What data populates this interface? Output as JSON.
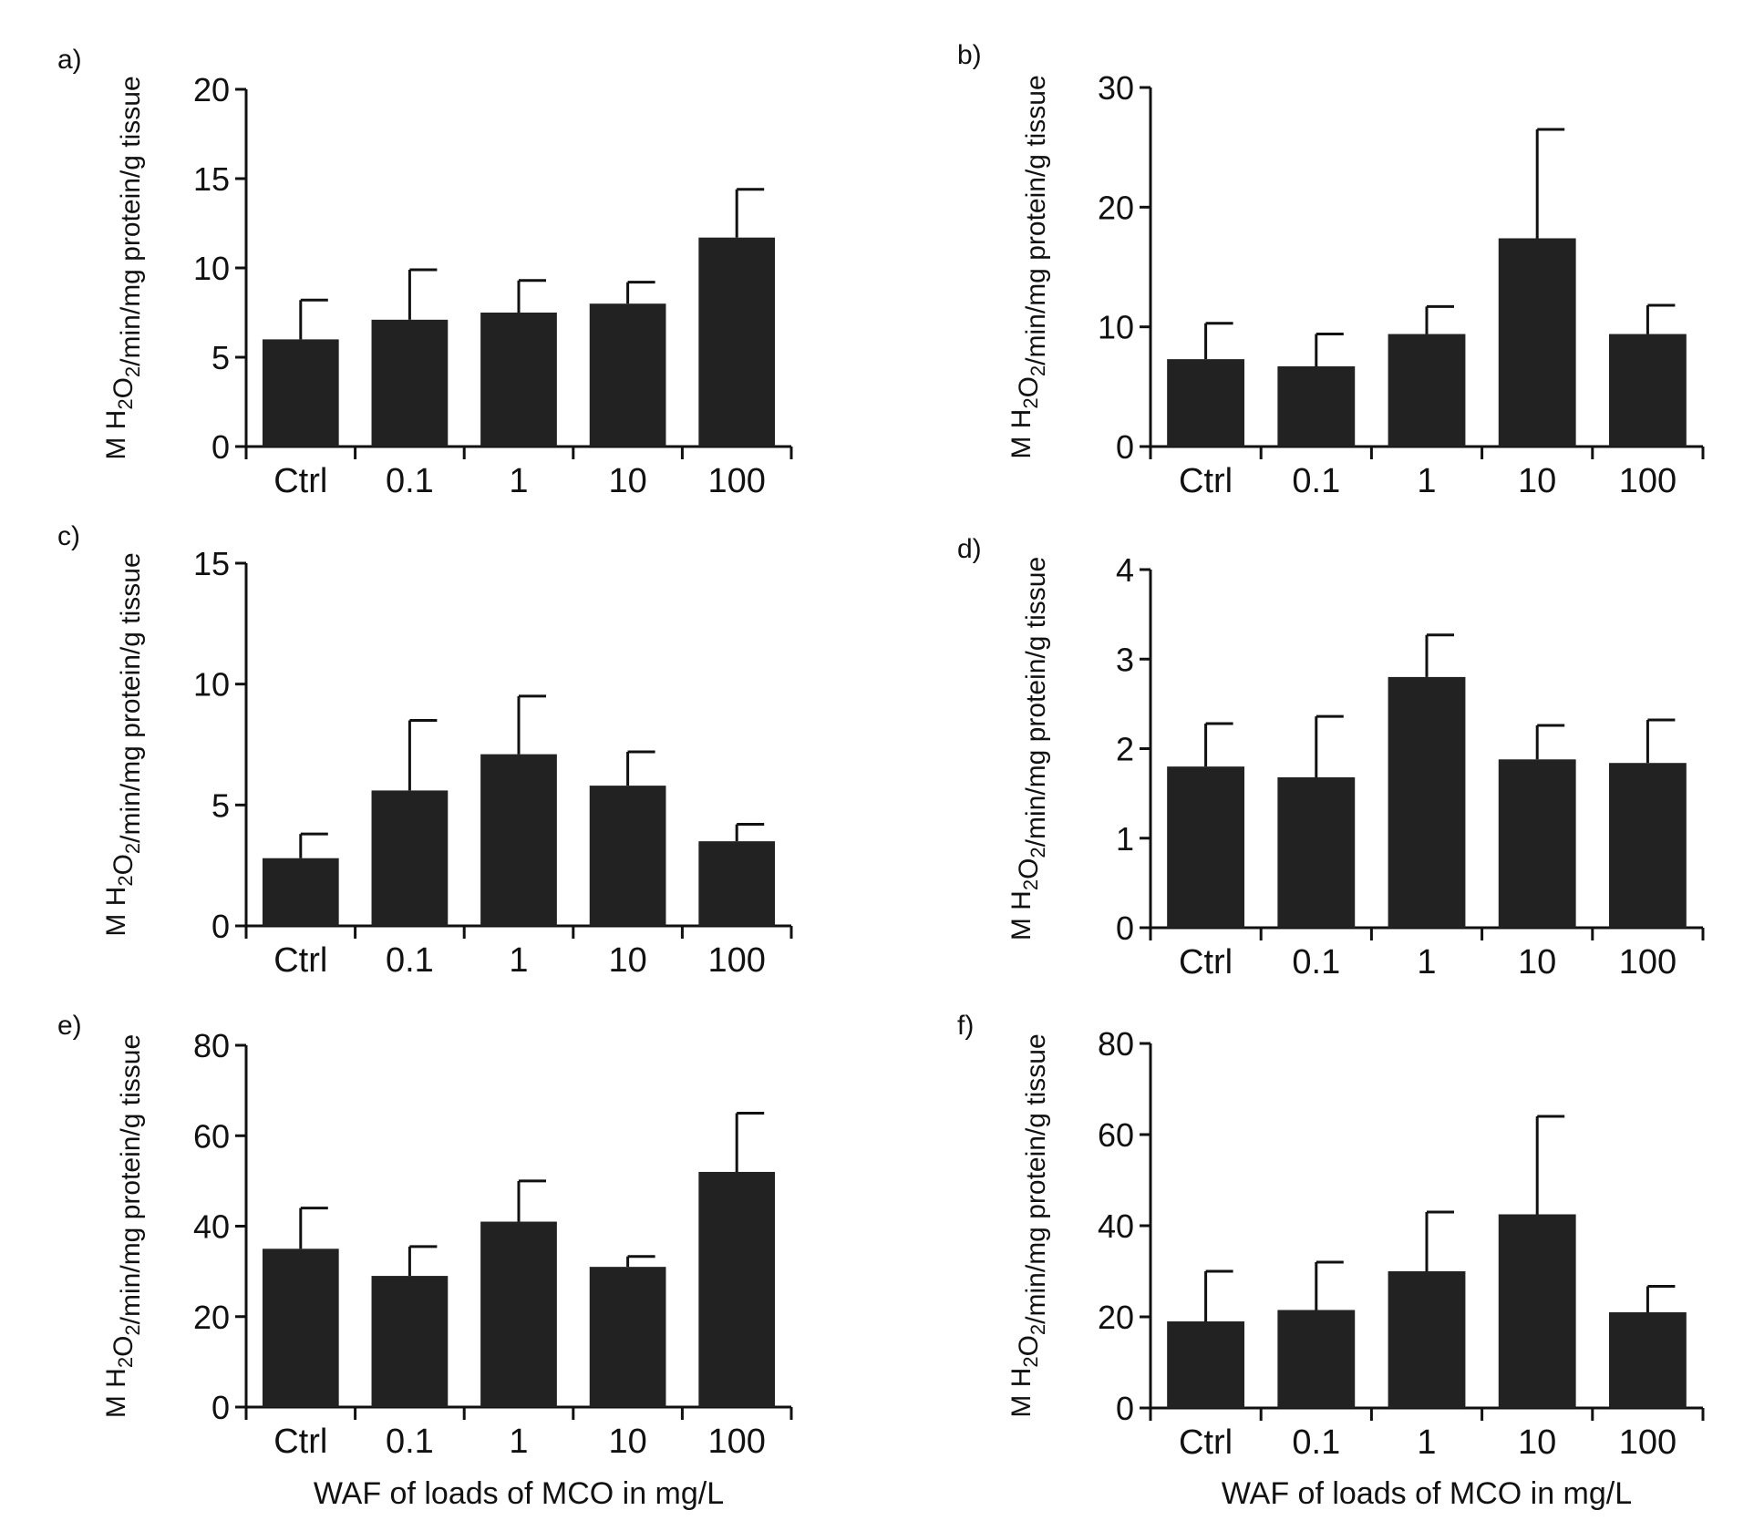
{
  "figure": {
    "x_axis_title": "WAF of loads of MCO in mg/L"
  },
  "chart_data": [
    {
      "panel": "a)",
      "type": "bar",
      "categories": [
        "Ctrl",
        "0.1",
        "1",
        "10",
        "100"
      ],
      "values": [
        6.0,
        7.1,
        7.5,
        8.0,
        11.7
      ],
      "errors": [
        2.2,
        2.8,
        1.8,
        1.2,
        2.7
      ],
      "ylabel": "M H2O2/min/mg protein/g tissue",
      "ylim": [
        0,
        20
      ],
      "yticks": [
        "0",
        "5",
        "10",
        "15",
        "20"
      ]
    },
    {
      "panel": "b)",
      "type": "bar",
      "categories": [
        "Ctrl",
        "0.1",
        "1",
        "10",
        "100"
      ],
      "values": [
        7.3,
        6.7,
        9.4,
        17.4,
        9.4
      ],
      "errors": [
        3.0,
        2.7,
        2.3,
        9.1,
        2.4
      ],
      "ylabel": "M H2O2/min/mg protein/g tissue",
      "ylim": [
        0,
        30
      ],
      "yticks": [
        "0",
        "10",
        "20",
        "30"
      ]
    },
    {
      "panel": "c)",
      "type": "bar",
      "categories": [
        "Ctrl",
        "0.1",
        "1",
        "10",
        "100"
      ],
      "values": [
        2.8,
        5.6,
        7.1,
        5.8,
        3.5
      ],
      "errors": [
        1.0,
        2.9,
        2.4,
        1.4,
        0.7
      ],
      "ylabel": "M H2O2/min/mg protein/g tissue",
      "ylim": [
        0,
        15
      ],
      "yticks": [
        "0",
        "5",
        "10",
        "15"
      ]
    },
    {
      "panel": "d)",
      "type": "bar",
      "categories": [
        "Ctrl",
        "0.1",
        "1",
        "10",
        "100"
      ],
      "values": [
        1.8,
        1.68,
        2.8,
        1.88,
        1.84
      ],
      "errors": [
        0.48,
        0.68,
        0.47,
        0.38,
        0.48
      ],
      "ylabel": "M H2O2/min/mg protein/g tissue",
      "ylim": [
        0,
        4
      ],
      "yticks": [
        "0",
        "1",
        "2",
        "3",
        "4"
      ]
    },
    {
      "panel": "e)",
      "type": "bar",
      "categories": [
        "Ctrl",
        "0.1",
        "1",
        "10",
        "100"
      ],
      "values": [
        35,
        29,
        41,
        31,
        52
      ],
      "errors": [
        9,
        6.5,
        9,
        2.3,
        13
      ],
      "ylabel": "M H2O2/min/mg protein/g tissue",
      "xlabel": "WAF of loads of MCO in mg/L",
      "ylim": [
        0,
        80
      ],
      "yticks": [
        "0",
        "20",
        "40",
        "60",
        "80"
      ]
    },
    {
      "panel": "f)",
      "type": "bar",
      "categories": [
        "Ctrl",
        "0.1",
        "1",
        "10",
        "100"
      ],
      "values": [
        19,
        21.5,
        30,
        42.5,
        21
      ],
      "errors": [
        11,
        10.5,
        13,
        21.5,
        5.7
      ],
      "ylabel": "M H2O2/min/mg protein/g tissue",
      "xlabel": "WAF of loads of MCO in mg/L",
      "ylim": [
        0,
        80
      ],
      "yticks": [
        "0",
        "20",
        "40",
        "60",
        "80"
      ]
    }
  ],
  "colors": {
    "bar": "#222222",
    "axis": "#111111",
    "text": "#111111"
  }
}
